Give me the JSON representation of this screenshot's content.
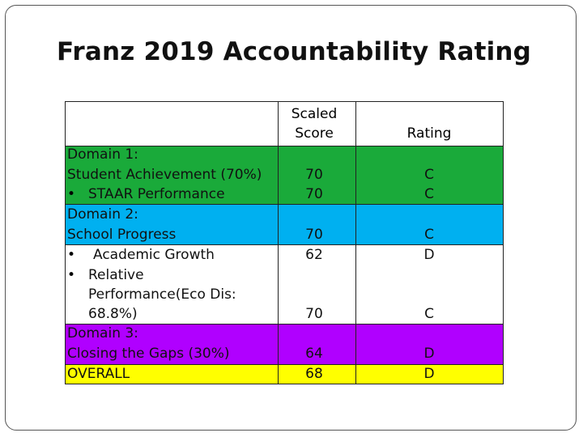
{
  "title": "Franz 2019 Accountability Rating",
  "colors": {
    "domain1": "#1aaa3a",
    "domain2": "#00b0f0",
    "domain3": "#b000ff",
    "overall": "#ffff00"
  },
  "header": {
    "scaled_score_line1": "Scaled",
    "scaled_score_line2": "Score",
    "rating": "Rating"
  },
  "domain1": {
    "label_line1": "Domain 1:",
    "label_line2": "Student Achievement (70%)",
    "score": "70",
    "rating": "C",
    "sub": {
      "bullet": "•",
      "label": "STAAR Performance",
      "score": "70",
      "rating": "C"
    }
  },
  "domain2": {
    "label_line1": "Domain 2:",
    "label_line2": "School Progress",
    "score": "70",
    "rating": "C",
    "sub1": {
      "bullet": "•",
      "label": "Academic Growth",
      "score": "62",
      "rating": "D"
    },
    "sub2": {
      "bullet": "•",
      "label_line1": "Relative",
      "label_line2": "Performance(Eco Dis:",
      "label_line3": "68.8%)",
      "score": "70",
      "rating": "C"
    }
  },
  "domain3": {
    "label_line1": "Domain 3:",
    "label_line2": "Closing the Gaps (30%)",
    "score": "64",
    "rating": "D"
  },
  "overall": {
    "label": "OVERALL",
    "score": "68",
    "rating": "D"
  }
}
